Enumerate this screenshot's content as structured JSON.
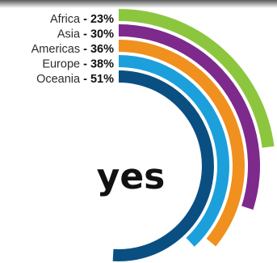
{
  "chart_data": {
    "type": "radial-bar",
    "title": "",
    "center_label": "yes",
    "unit": "%",
    "max_value": 100,
    "series": [
      {
        "category": "Africa",
        "value": 23,
        "value_label": "23%",
        "color": "#8cc63f"
      },
      {
        "category": "Asia",
        "value": 30,
        "value_label": "30%",
        "color": "#7d2a8c"
      },
      {
        "category": "Americas",
        "value": 36,
        "value_label": "36%",
        "color": "#f0901e"
      },
      {
        "category": "Europe",
        "value": 38,
        "value_label": "38%",
        "color": "#1ca0dc"
      },
      {
        "category": "Oceania",
        "value": 51,
        "value_label": "51%",
        "color": "#0a4f82"
      }
    ],
    "separator": "-"
  }
}
